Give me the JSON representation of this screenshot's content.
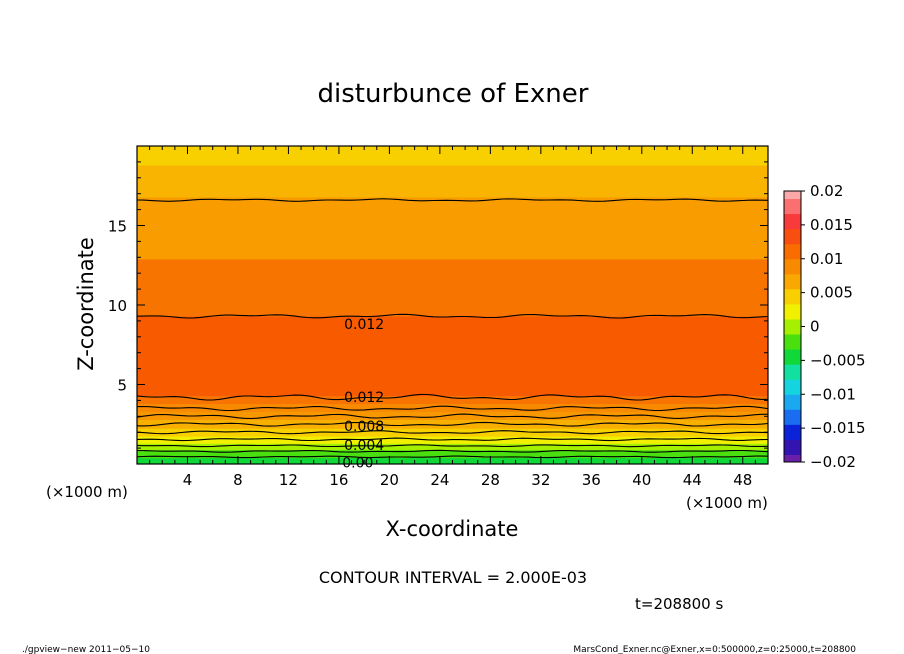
{
  "chart_data": {
    "type": "contour",
    "title": "disturbunce of Exner",
    "xlabel": "X-coordinate",
    "ylabel": "Z-coordinate",
    "x_unit": "(×1000 m)",
    "y_unit": "(×1000 m)",
    "xlim": [
      0,
      50
    ],
    "ylim": [
      0,
      20
    ],
    "x_ticks": [
      4,
      8,
      12,
      16,
      20,
      24,
      28,
      32,
      36,
      40,
      44,
      48
    ],
    "y_ticks": [
      5,
      10,
      15
    ],
    "contour_interval_text": "CONTOUR INTERVAL = 2.000E-03",
    "contour_labels": [
      {
        "text": "0.012",
        "x": 18,
        "z": 8.8
      },
      {
        "text": "0.012",
        "x": 18,
        "z": 4.2
      },
      {
        "text": "0.008",
        "x": 18,
        "z": 2.4
      },
      {
        "text": "0.004",
        "x": 18,
        "z": 1.2
      },
      {
        "text": "0.00",
        "x": 17.5,
        "z": 0.1
      }
    ],
    "colorbar": {
      "min": -0.02,
      "max": 0.02,
      "tick_values": [
        0.02,
        0.015,
        0.01,
        0.005,
        0,
        -0.005,
        -0.01,
        -0.015,
        -0.02
      ],
      "tick_labels": [
        "0.02",
        "0.015",
        "0.01",
        "0.005",
        "0",
        "−0.005",
        "−0.01",
        "−0.015",
        "−0.02"
      ],
      "level_colors": [
        "#6a1fa8",
        "#3414b0",
        "#0a22d8",
        "#1a6cf0",
        "#1aa8f0",
        "#14d4e0",
        "#12e0a0",
        "#10d838",
        "#4ae010",
        "#a4f000",
        "#f0f000",
        "#f8d000",
        "#f8a800",
        "#f88a00",
        "#f86c00",
        "#f84e10",
        "#f83a3a",
        "#fa7070",
        "#fca8a8"
      ]
    },
    "z_profile": [
      {
        "z": 0.0,
        "color": "#10d838"
      },
      {
        "z": 0.4,
        "color": "#4ae010"
      },
      {
        "z": 0.9,
        "color": "#a4f000"
      },
      {
        "z": 1.3,
        "color": "#f0f000"
      },
      {
        "z": 1.75,
        "color": "#f8d000"
      },
      {
        "z": 2.25,
        "color": "#f8b000"
      },
      {
        "z": 2.8,
        "color": "#f89800"
      },
      {
        "z": 3.3,
        "color": "#f88a00"
      },
      {
        "z": 3.8,
        "color": "#f87400"
      },
      {
        "z": 4.3,
        "color": "#f85a00"
      },
      {
        "z": 9.3,
        "color": "#f87400"
      },
      {
        "z": 12.9,
        "color": "#f89c00"
      },
      {
        "z": 16.8,
        "color": "#f8b400"
      },
      {
        "z": 18.8,
        "color": "#f8d000"
      },
      {
        "z": 20.0,
        "color": "#f8d000"
      }
    ],
    "contour_lines": [
      {
        "z": 0.45,
        "amp": 0.05
      },
      {
        "z": 0.8,
        "amp": 0.06
      },
      {
        "z": 1.15,
        "amp": 0.06
      },
      {
        "z": 1.55,
        "amp": 0.08
      },
      {
        "z": 2.0,
        "amp": 0.1
      },
      {
        "z": 2.5,
        "amp": 0.12
      },
      {
        "z": 3.0,
        "amp": 0.14
      },
      {
        "z": 3.5,
        "amp": 0.14
      },
      {
        "z": 4.2,
        "amp": 0.18
      },
      {
        "z": 9.3,
        "amp": 0.12
      },
      {
        "z": 16.6,
        "amp": 0.08
      }
    ],
    "time_text": "t=208800 s"
  },
  "footer": {
    "left": "./gpview−new  2011−05−10",
    "right": "MarsCond_Exner.nc@Exner,x=0:500000,z=0:25000,t=208800"
  }
}
